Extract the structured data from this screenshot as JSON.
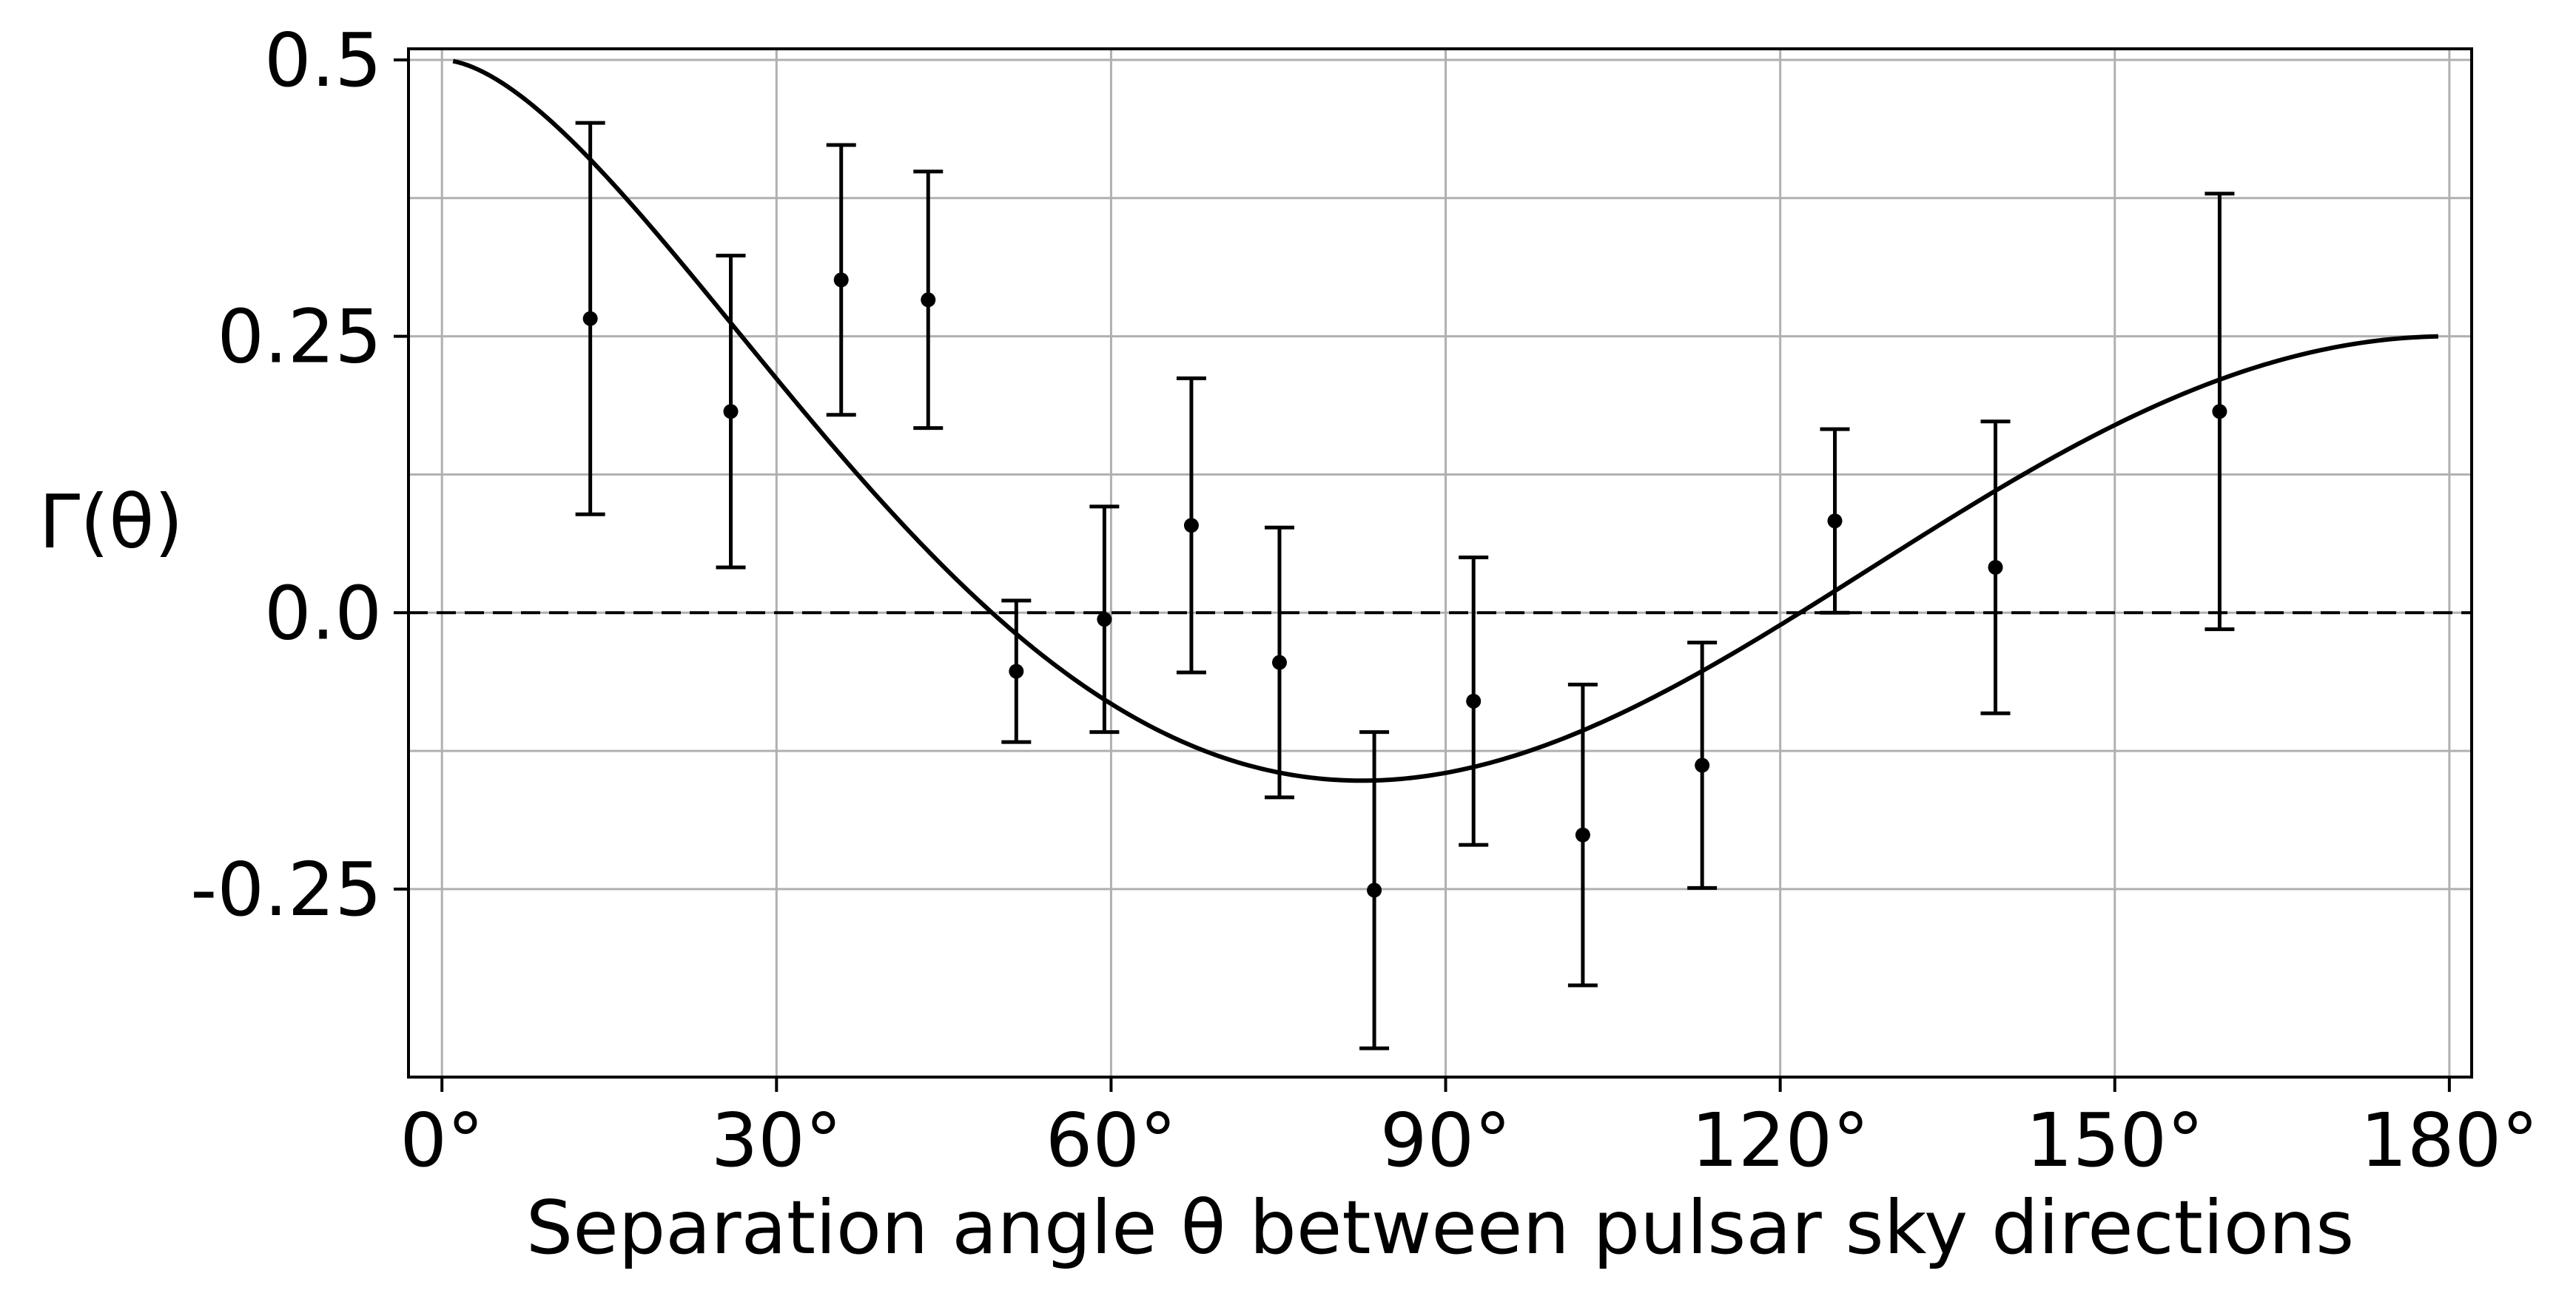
{
  "chart_data": {
    "type": "scatter",
    "title": "",
    "xlabel": "Separation angle θ between pulsar sky directions",
    "ylabel": "Γ(θ)",
    "xlim": [
      -3,
      182
    ],
    "ylim": [
      -0.42,
      0.51
    ],
    "x_ticks": [
      {
        "value": 0,
        "label": "0°"
      },
      {
        "value": 30,
        "label": "30°"
      },
      {
        "value": 60,
        "label": "60°"
      },
      {
        "value": 90,
        "label": "90°"
      },
      {
        "value": 120,
        "label": "120°"
      },
      {
        "value": 150,
        "label": "150°"
      },
      {
        "value": 180,
        "label": "180°"
      }
    ],
    "y_ticks": [
      {
        "value": 0.5,
        "label": "0.5"
      },
      {
        "value": 0.25,
        "label": "0.25"
      },
      {
        "value": 0.0,
        "label": "0.0"
      },
      {
        "value": -0.25,
        "label": "-0.25"
      }
    ],
    "minor_grid_y": [
      0.375,
      0.125,
      -0.125
    ],
    "grid": true,
    "reference_line": {
      "y": 0,
      "style": "dashed"
    },
    "series": [
      {
        "kind": "errorbar",
        "points": [
          {
            "x": 13.3,
            "y": 0.266,
            "yerr_low": 0.177,
            "yerr_high": 0.177
          },
          {
            "x": 25.9,
            "y": 0.182,
            "yerr_low": 0.141,
            "yerr_high": 0.141
          },
          {
            "x": 35.8,
            "y": 0.301,
            "yerr_low": 0.122,
            "yerr_high": 0.122
          },
          {
            "x": 43.6,
            "y": 0.283,
            "yerr_low": 0.116,
            "yerr_high": 0.116
          },
          {
            "x": 51.5,
            "y": -0.053,
            "yerr_low": 0.064,
            "yerr_high": 0.064
          },
          {
            "x": 59.4,
            "y": -0.006,
            "yerr_low": 0.102,
            "yerr_high": 0.102
          },
          {
            "x": 67.2,
            "y": 0.079,
            "yerr_low": 0.133,
            "yerr_high": 0.133
          },
          {
            "x": 75.1,
            "y": -0.045,
            "yerr_low": 0.122,
            "yerr_high": 0.122
          },
          {
            "x": 83.6,
            "y": -0.251,
            "yerr_low": 0.143,
            "yerr_high": 0.143
          },
          {
            "x": 92.5,
            "y": -0.08,
            "yerr_low": 0.13,
            "yerr_high": 0.13
          },
          {
            "x": 102.3,
            "y": -0.201,
            "yerr_low": 0.136,
            "yerr_high": 0.136
          },
          {
            "x": 113.0,
            "y": -0.138,
            "yerr_low": 0.111,
            "yerr_high": 0.111
          },
          {
            "x": 124.9,
            "y": 0.083,
            "yerr_low": 0.083,
            "yerr_high": 0.083
          },
          {
            "x": 139.3,
            "y": 0.041,
            "yerr_low": 0.132,
            "yerr_high": 0.132
          },
          {
            "x": 159.4,
            "y": 0.182,
            "yerr_low": 0.197,
            "yerr_high": 0.197
          }
        ]
      },
      {
        "kind": "curve",
        "function": "hellings-downs",
        "x_range": [
          1,
          179
        ],
        "formula": "0.5 - 0.25*u + 1.5*u*ln(u), u = (1 - cos θ)/2"
      }
    ],
    "colors": {
      "markers": "#000000",
      "curve": "#000000",
      "grid": "#b0b0b0",
      "zero_line": "#000000"
    }
  }
}
